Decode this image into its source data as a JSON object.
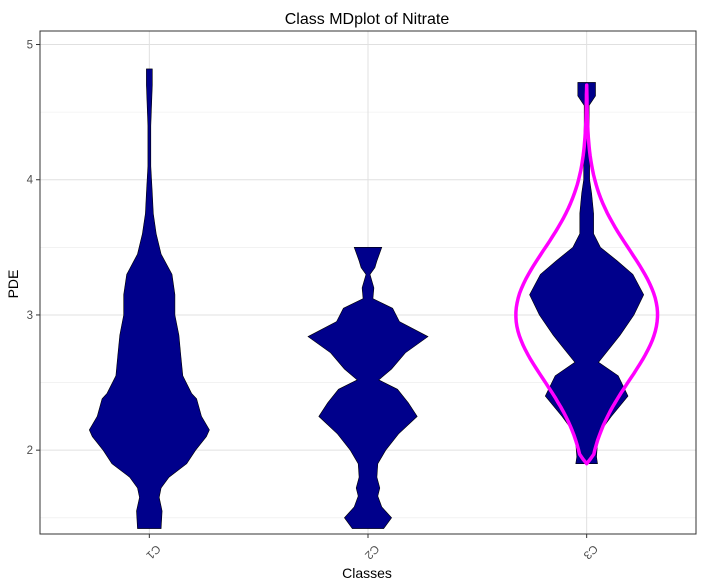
{
  "chart_data": {
    "type": "violin",
    "title": "Class MDplot of Nitrate",
    "xlabel": "Classes",
    "ylabel": "PDE",
    "categories": [
      "C1",
      "C2",
      "C3"
    ],
    "ylim": [
      1.38,
      5.1
    ],
    "yticks": [
      2,
      3,
      4,
      5
    ],
    "grid": true,
    "fill_color": "#00008B",
    "outline_color": "#FF00FF",
    "series": [
      {
        "category": "C1",
        "profile": [
          {
            "y": 1.42,
            "w": 0.12
          },
          {
            "y": 1.55,
            "w": 0.13
          },
          {
            "y": 1.65,
            "w": 0.1
          },
          {
            "y": 1.72,
            "w": 0.12
          },
          {
            "y": 1.8,
            "w": 0.2
          },
          {
            "y": 1.9,
            "w": 0.38
          },
          {
            "y": 2.0,
            "w": 0.47
          },
          {
            "y": 2.1,
            "w": 0.58
          },
          {
            "y": 2.15,
            "w": 0.61
          },
          {
            "y": 2.25,
            "w": 0.53
          },
          {
            "y": 2.38,
            "w": 0.48
          },
          {
            "y": 2.42,
            "w": 0.43
          },
          {
            "y": 2.55,
            "w": 0.34
          },
          {
            "y": 2.7,
            "w": 0.32
          },
          {
            "y": 2.85,
            "w": 0.3
          },
          {
            "y": 3.0,
            "w": 0.26
          },
          {
            "y": 3.15,
            "w": 0.26
          },
          {
            "y": 3.3,
            "w": 0.23
          },
          {
            "y": 3.45,
            "w": 0.12
          },
          {
            "y": 3.6,
            "w": 0.07
          },
          {
            "y": 3.75,
            "w": 0.04
          },
          {
            "y": 3.9,
            "w": 0.03
          },
          {
            "y": 4.1,
            "w": 0.015
          },
          {
            "y": 4.4,
            "w": 0.015
          },
          {
            "y": 4.6,
            "w": 0.025
          },
          {
            "y": 4.7,
            "w": 0.03
          },
          {
            "y": 4.82,
            "w": 0.03
          }
        ]
      },
      {
        "category": "C2",
        "profile": [
          {
            "y": 1.42,
            "w": 0.16
          },
          {
            "y": 1.5,
            "w": 0.24
          },
          {
            "y": 1.58,
            "w": 0.14
          },
          {
            "y": 1.66,
            "w": 0.1
          },
          {
            "y": 1.72,
            "w": 0.12
          },
          {
            "y": 1.8,
            "w": 0.09
          },
          {
            "y": 1.9,
            "w": 0.1
          },
          {
            "y": 2.0,
            "w": 0.18
          },
          {
            "y": 2.12,
            "w": 0.31
          },
          {
            "y": 2.25,
            "w": 0.5
          },
          {
            "y": 2.35,
            "w": 0.41
          },
          {
            "y": 2.45,
            "w": 0.3
          },
          {
            "y": 2.52,
            "w": 0.11
          },
          {
            "y": 2.6,
            "w": 0.24
          },
          {
            "y": 2.72,
            "w": 0.38
          },
          {
            "y": 2.84,
            "w": 0.61
          },
          {
            "y": 2.95,
            "w": 0.32
          },
          {
            "y": 3.05,
            "w": 0.25
          },
          {
            "y": 3.12,
            "w": 0.05
          },
          {
            "y": 3.2,
            "w": 0.06
          },
          {
            "y": 3.3,
            "w": 0.02
          },
          {
            "y": 3.35,
            "w": 0.07
          },
          {
            "y": 3.4,
            "w": 0.09
          },
          {
            "y": 3.5,
            "w": 0.14
          }
        ]
      },
      {
        "category": "C3",
        "profile": [
          {
            "y": 1.9,
            "w": 0.11
          },
          {
            "y": 1.95,
            "w": 0.1
          },
          {
            "y": 2.05,
            "w": 0.11
          },
          {
            "y": 2.15,
            "w": 0.15
          },
          {
            "y": 2.25,
            "w": 0.25
          },
          {
            "y": 2.4,
            "w": 0.42
          },
          {
            "y": 2.55,
            "w": 0.32
          },
          {
            "y": 2.65,
            "w": 0.12
          },
          {
            "y": 2.75,
            "w": 0.23
          },
          {
            "y": 2.85,
            "w": 0.34
          },
          {
            "y": 3.0,
            "w": 0.48
          },
          {
            "y": 3.15,
            "w": 0.58
          },
          {
            "y": 3.3,
            "w": 0.47
          },
          {
            "y": 3.4,
            "w": 0.31
          },
          {
            "y": 3.5,
            "w": 0.14
          },
          {
            "y": 3.6,
            "w": 0.07
          },
          {
            "y": 3.75,
            "w": 0.07
          },
          {
            "y": 3.9,
            "w": 0.05
          },
          {
            "y": 4.0,
            "w": 0.03
          },
          {
            "y": 4.2,
            "w": 0.03
          },
          {
            "y": 4.4,
            "w": 0.025
          },
          {
            "y": 4.55,
            "w": 0.025
          },
          {
            "y": 4.62,
            "w": 0.09
          },
          {
            "y": 4.72,
            "w": 0.09
          }
        ],
        "normal_fit": {
          "mean": 3.0,
          "sd": 0.48,
          "ymin": 1.9,
          "ymax": 4.7,
          "peak_w": 0.72
        }
      }
    ]
  }
}
